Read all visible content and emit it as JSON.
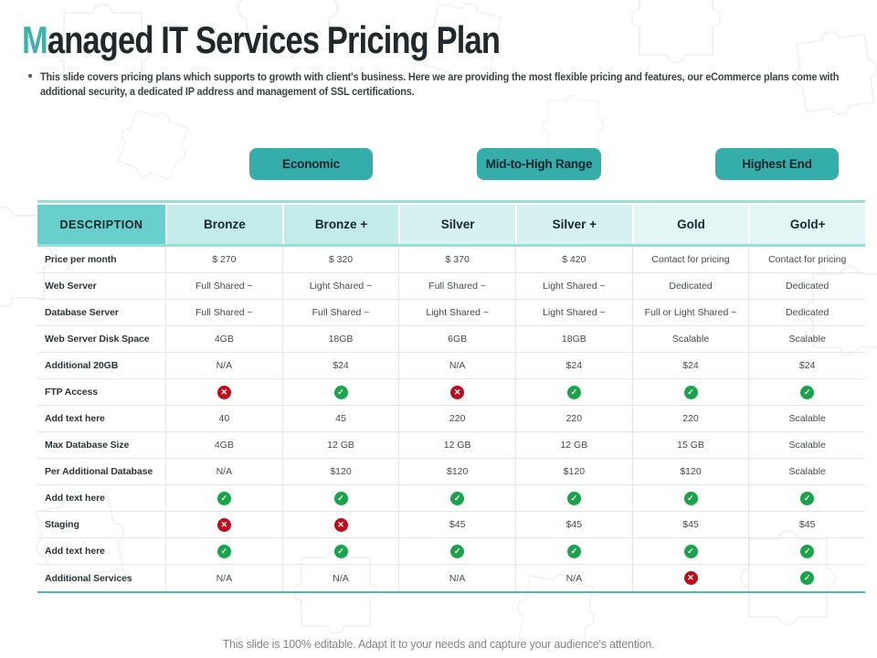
{
  "title": {
    "accent": "M",
    "rest": "anaged IT Services Pricing Plan"
  },
  "intro": "This slide covers pricing plans which supports to growth with client's business. Here we are providing the most flexible pricing and features, our eCommerce plans come with additional security, a dedicated IP address and management of SSL certifications.",
  "tiers": [
    {
      "label": "Economic"
    },
    {
      "label": "Mid-to-High Range"
    },
    {
      "label": "Highest End"
    }
  ],
  "table": {
    "columns": [
      "DESCRIPTION",
      "Bronze",
      "Bronze +",
      "Silver",
      "Silver +",
      "Gold",
      "Gold+"
    ],
    "rows": [
      {
        "label": "Price per month",
        "values": [
          "$ 270",
          "$ 320",
          "$ 370",
          "$ 420",
          "Contact for pricing",
          "Contact for pricing"
        ]
      },
      {
        "label": "Web Server",
        "values": [
          "Full Shared ~",
          "Light Shared ~",
          "Full Shared ~",
          "Light Shared ~",
          "Dedicated",
          "Dedicated"
        ]
      },
      {
        "label": "Database Server",
        "values": [
          "Full Shared ~",
          "Full Shared ~",
          "Light Shared ~",
          "Light Shared ~",
          "Full or Light Shared ~",
          "Dedicated"
        ]
      },
      {
        "label": "Web Server Disk Space",
        "values": [
          "4GB",
          "18GB",
          "6GB",
          "18GB",
          "Scalable",
          "Scalable"
        ]
      },
      {
        "label": "Additional 20GB",
        "values": [
          "N/A",
          "$24",
          "N/A",
          "$24",
          "$24",
          "$24"
        ]
      },
      {
        "label": "FTP Access",
        "values": [
          "cross-icon",
          "check-icon",
          "cross-icon",
          "check-icon",
          "check-icon",
          "check-icon"
        ]
      },
      {
        "label": "Add text here",
        "values": [
          "40",
          "45",
          "220",
          "220",
          "220",
          "Scalable"
        ]
      },
      {
        "label": "Max Database Size",
        "values": [
          "4GB",
          "12 GB",
          "12 GB",
          "12 GB",
          "15 GB",
          "Scalable"
        ]
      },
      {
        "label": "Per Additional Database",
        "values": [
          "N/A",
          "$120",
          "$120",
          "$120",
          "$120",
          "Scalable"
        ]
      },
      {
        "label": "Add text here",
        "values": [
          "check-icon",
          "check-icon",
          "check-icon",
          "check-icon",
          "check-icon",
          "check-icon"
        ]
      },
      {
        "label": "Staging",
        "values": [
          "cross-icon",
          "cross-icon",
          "$45",
          "$45",
          "$45",
          "$45"
        ]
      },
      {
        "label": "Add text here",
        "values": [
          "check-icon",
          "check-icon",
          "check-icon",
          "check-icon",
          "check-icon",
          "check-icon"
        ]
      },
      {
        "label": "Additional Services",
        "values": [
          "N/A",
          "N/A",
          "N/A",
          "N/A",
          "cross-icon",
          "check-icon"
        ]
      }
    ]
  },
  "icons": {
    "check": "check-icon",
    "cross": "cross-icon"
  },
  "colors": {
    "accent_teal": "#35adab",
    "title_accent": "#41b0ad",
    "header_description_bg": "#68cfcc",
    "header_bronze_bg": "#c3ebe9",
    "header_silver_bg": "#d5f1f0",
    "header_gold_bg": "#e3f6f5",
    "table_border_teal": "#98dfdc",
    "table_bottom_teal": "#4db7b3",
    "check_green": "#1aa34a",
    "cross_red": "#b90f1e"
  },
  "footer": "This slide is 100% editable. Adapt it to your needs and capture your audience's attention."
}
